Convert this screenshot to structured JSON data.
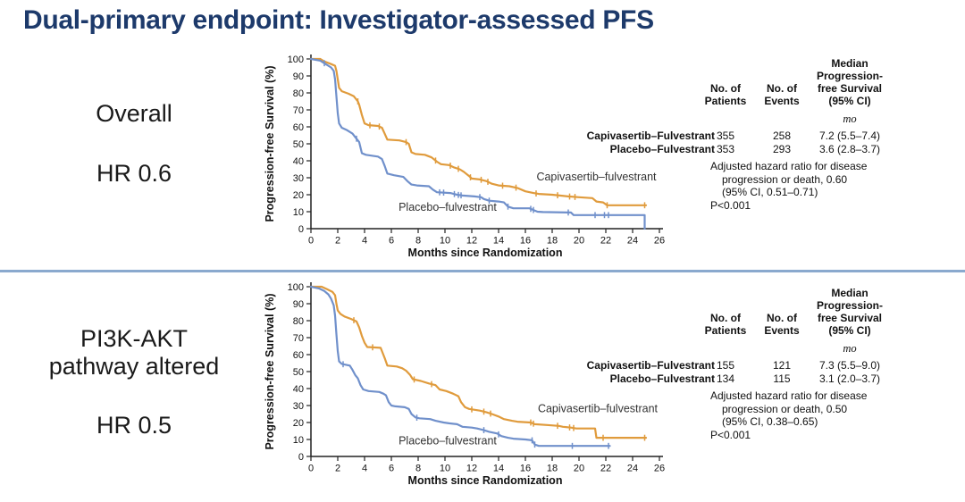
{
  "title": "Dual-primary endpoint: Investigator-assessed PFS",
  "colors": {
    "title": "#1d3a6b",
    "divider": "#8aa9ce",
    "capivasertib": "#e09b3c",
    "placebo": "#7090cb",
    "axis": "#222222"
  },
  "panels": [
    {
      "subgroup_label": "Overall",
      "hr_label": "HR 0.6",
      "table": {
        "header_patients": "No. of\nPatients",
        "header_events": "No. of\nEvents",
        "header_median": "Median\nProgression-\nfree Survival\n(95% CI)",
        "unit": "mo",
        "rows": [
          {
            "label": "Capivasertib–Fulvestrant",
            "patients": "355",
            "events": "258",
            "median": "7.2 (5.5–7.4)"
          },
          {
            "label": "Placebo–Fulvestrant",
            "patients": "353",
            "events": "293",
            "median": "3.6 (2.8–3.7)"
          }
        ],
        "hazard_lines": [
          "Adjusted hazard ratio for disease",
          "progression or death, 0.60",
          "(95% CI, 0.51–0.71)",
          "P<0.001"
        ]
      }
    },
    {
      "subgroup_label": "PI3K-AKT\npathway altered",
      "hr_label": "HR 0.5",
      "table": {
        "header_patients": "No. of\nPatients",
        "header_events": "No. of\nEvents",
        "header_median": "Median\nProgression-\nfree Survival\n(95% CI)",
        "unit": "mo",
        "rows": [
          {
            "label": "Capivasertib–Fulvestrant",
            "patients": "155",
            "events": "121",
            "median": "7.3 (5.5–9.0)"
          },
          {
            "label": "Placebo–Fulvestrant",
            "patients": "134",
            "events": "115",
            "median": "3.1 (2.0–3.7)"
          }
        ],
        "hazard_lines": [
          "Adjusted hazard ratio for disease",
          "progression or death, 0.50",
          "(95% CI, 0.38–0.65)",
          "P<0.001"
        ]
      }
    }
  ],
  "chart_data": [
    {
      "type": "line",
      "title": "Overall — Investigator-assessed PFS",
      "xlabel": "Months since Randomization",
      "ylabel": "Progression-free Survival (%)",
      "xlim": [
        0,
        26
      ],
      "ylim": [
        0,
        100
      ],
      "xticks": [
        0,
        2,
        4,
        6,
        8,
        10,
        12,
        14,
        16,
        18,
        20,
        22,
        24,
        26
      ],
      "yticks": [
        0,
        10,
        20,
        30,
        40,
        50,
        60,
        70,
        80,
        90,
        100
      ],
      "grid": false,
      "legend_position": "in-plot labels",
      "series": [
        {
          "key": "capivasertib",
          "name": "Capivasertib–fulvestrant",
          "color": "#e09b3c",
          "label_at": [
            21.3,
            28.5
          ],
          "points": [
            [
              0,
              100
            ],
            [
              0.7,
              100
            ],
            [
              1.0,
              98.5
            ],
            [
              1.5,
              97
            ],
            [
              1.8,
              96
            ],
            [
              1.9,
              93
            ],
            [
              2.0,
              88
            ],
            [
              2.1,
              83
            ],
            [
              2.3,
              81
            ],
            [
              2.8,
              79.5
            ],
            [
              3.2,
              78
            ],
            [
              3.5,
              75
            ],
            [
              3.6,
              73
            ],
            [
              3.8,
              67
            ],
            [
              4.0,
              62
            ],
            [
              4.3,
              61
            ],
            [
              5.0,
              60.5
            ],
            [
              5.3,
              59.5
            ],
            [
              5.5,
              56
            ],
            [
              5.7,
              52.5
            ],
            [
              6.6,
              52
            ],
            [
              7.1,
              51
            ],
            [
              7.3,
              50
            ],
            [
              7.5,
              45
            ],
            [
              7.8,
              44
            ],
            [
              8.5,
              43.5
            ],
            [
              9.0,
              42
            ],
            [
              9.4,
              39.5
            ],
            [
              9.7,
              38
            ],
            [
              10.3,
              37.5
            ],
            [
              10.7,
              36
            ],
            [
              11.1,
              35
            ],
            [
              11.4,
              33.5
            ],
            [
              11.8,
              31
            ],
            [
              12.0,
              29.5
            ],
            [
              12.6,
              29
            ],
            [
              13.1,
              28
            ],
            [
              13.5,
              26.5
            ],
            [
              14.0,
              25.5
            ],
            [
              14.8,
              25
            ],
            [
              15.4,
              24
            ],
            [
              16.0,
              22
            ],
            [
              16.6,
              21
            ],
            [
              17.0,
              20.5
            ],
            [
              18.0,
              20
            ],
            [
              19.2,
              19
            ],
            [
              20.0,
              18.5
            ],
            [
              21.0,
              18
            ],
            [
              21.3,
              16
            ],
            [
              21.8,
              15.5
            ],
            [
              22.1,
              13.8
            ],
            [
              25.0,
              13.8
            ]
          ],
          "censor_x": [
            3.5,
            4.4,
            5.1,
            7.1,
            9.3,
            10.4,
            11.0,
            11.9,
            12.7,
            13.2,
            14.3,
            15.3,
            16.8,
            18.4,
            19.3,
            19.7,
            22.1,
            24.9
          ]
        },
        {
          "key": "placebo",
          "name": "Placebo–fulvestrant",
          "color": "#7090cb",
          "label_at": [
            10.2,
            10.5
          ],
          "points": [
            [
              0,
              100
            ],
            [
              0.7,
              99
            ],
            [
              1.0,
              97.5
            ],
            [
              1.5,
              95
            ],
            [
              1.7,
              93
            ],
            [
              1.8,
              88
            ],
            [
              1.9,
              78
            ],
            [
              2.0,
              68
            ],
            [
              2.1,
              62
            ],
            [
              2.3,
              59.5
            ],
            [
              2.7,
              58
            ],
            [
              3.1,
              56
            ],
            [
              3.3,
              54
            ],
            [
              3.5,
              52
            ],
            [
              3.6,
              51
            ],
            [
              3.8,
              44.5
            ],
            [
              4.1,
              43.5
            ],
            [
              5.0,
              42.5
            ],
            [
              5.3,
              41
            ],
            [
              5.5,
              37
            ],
            [
              5.7,
              32.5
            ],
            [
              6.2,
              31.5
            ],
            [
              6.9,
              30.5
            ],
            [
              7.2,
              28
            ],
            [
              7.5,
              26
            ],
            [
              7.9,
              25.5
            ],
            [
              8.8,
              25
            ],
            [
              9.1,
              23
            ],
            [
              9.4,
              21.5
            ],
            [
              10.4,
              21
            ],
            [
              10.9,
              20
            ],
            [
              11.3,
              19.5
            ],
            [
              12.2,
              19
            ],
            [
              12.7,
              18.5
            ],
            [
              12.9,
              17.5
            ],
            [
              13.3,
              16.5
            ],
            [
              14.0,
              16
            ],
            [
              14.4,
              15.5
            ],
            [
              14.7,
              13
            ],
            [
              15.1,
              12
            ],
            [
              16.3,
              12
            ],
            [
              16.6,
              11
            ],
            [
              16.9,
              10
            ],
            [
              17.3,
              9.8
            ],
            [
              19.4,
              9.5
            ],
            [
              19.6,
              8
            ],
            [
              24.9,
              8
            ],
            [
              24.9,
              0
            ]
          ],
          "censor_x": [
            1.0,
            3.4,
            9.6,
            9.9,
            10.7,
            11.0,
            11.2,
            12.6,
            13.3,
            14.7,
            16.4,
            16.6,
            19.2,
            21.2,
            21.9,
            22.2
          ]
        }
      ]
    },
    {
      "type": "line",
      "title": "PI3K-AKT pathway altered — Investigator-assessed PFS",
      "xlabel": "Months since Randomization",
      "ylabel": "Progression-free Survival (%)",
      "xlim": [
        0,
        26
      ],
      "ylim": [
        0,
        100
      ],
      "xticks": [
        0,
        2,
        4,
        6,
        8,
        10,
        12,
        14,
        16,
        18,
        20,
        22,
        24,
        26
      ],
      "yticks": [
        0,
        10,
        20,
        30,
        40,
        50,
        60,
        70,
        80,
        90,
        100
      ],
      "grid": false,
      "legend_position": "in-plot labels",
      "series": [
        {
          "key": "capivasertib",
          "name": "Capivasertib–fulvestrant",
          "color": "#e09b3c",
          "label_at": [
            21.4,
            26
          ],
          "points": [
            [
              0,
              100
            ],
            [
              0.8,
              100
            ],
            [
              1.2,
              98.5
            ],
            [
              1.6,
              97
            ],
            [
              1.8,
              95
            ],
            [
              1.9,
              90
            ],
            [
              2.0,
              86
            ],
            [
              2.2,
              84
            ],
            [
              2.5,
              82.5
            ],
            [
              3.0,
              81
            ],
            [
              3.4,
              79.5
            ],
            [
              3.6,
              76
            ],
            [
              3.8,
              71
            ],
            [
              4.0,
              67
            ],
            [
              4.2,
              64.5
            ],
            [
              5.2,
              64
            ],
            [
              5.5,
              58
            ],
            [
              5.7,
              53.5
            ],
            [
              6.4,
              53
            ],
            [
              6.8,
              52
            ],
            [
              7.1,
              50.5
            ],
            [
              7.4,
              48
            ],
            [
              7.6,
              45.5
            ],
            [
              8.2,
              44.5
            ],
            [
              8.8,
              43
            ],
            [
              9.3,
              42
            ],
            [
              9.6,
              39.5
            ],
            [
              10.1,
              38.5
            ],
            [
              10.6,
              37
            ],
            [
              11.0,
              35.5
            ],
            [
              11.2,
              32
            ],
            [
              11.5,
              29
            ],
            [
              11.8,
              28
            ],
            [
              12.6,
              27
            ],
            [
              13.1,
              26
            ],
            [
              13.5,
              25
            ],
            [
              14.0,
              23.5
            ],
            [
              14.4,
              22
            ],
            [
              15.0,
              21
            ],
            [
              15.4,
              20.5
            ],
            [
              16.4,
              20
            ],
            [
              16.7,
              19
            ],
            [
              17.6,
              18.5
            ],
            [
              18.5,
              18
            ],
            [
              18.8,
              17.5
            ],
            [
              19.4,
              17
            ],
            [
              19.8,
              16.5
            ],
            [
              21.2,
              16.5
            ],
            [
              21.3,
              11
            ],
            [
              25.0,
              11
            ]
          ],
          "censor_x": [
            3.2,
            4.6,
            7.7,
            9.0,
            12.0,
            12.9,
            13.4,
            16.4,
            16.6,
            18.4,
            19.3,
            19.6,
            21.8,
            24.9
          ]
        },
        {
          "key": "placebo",
          "name": "Placebo–fulvestrant",
          "color": "#7090cb",
          "label_at": [
            10.2,
            7.2
          ],
          "points": [
            [
              0,
              100
            ],
            [
              0.6,
              99
            ],
            [
              1.0,
              97.5
            ],
            [
              1.3,
              95.5
            ],
            [
              1.5,
              93
            ],
            [
              1.7,
              89
            ],
            [
              1.8,
              83
            ],
            [
              1.9,
              72
            ],
            [
              2.0,
              62
            ],
            [
              2.1,
              56
            ],
            [
              2.3,
              54.5
            ],
            [
              2.9,
              53.5
            ],
            [
              3.1,
              51
            ],
            [
              3.3,
              48
            ],
            [
              3.5,
              46
            ],
            [
              3.7,
              42
            ],
            [
              3.9,
              39.5
            ],
            [
              4.3,
              38.5
            ],
            [
              5.1,
              38
            ],
            [
              5.4,
              37
            ],
            [
              5.6,
              36
            ],
            [
              5.8,
              32
            ],
            [
              6.0,
              30
            ],
            [
              6.3,
              29.5
            ],
            [
              7.0,
              29
            ],
            [
              7.3,
              28
            ],
            [
              7.5,
              25
            ],
            [
              7.8,
              23
            ],
            [
              8.1,
              22.5
            ],
            [
              8.9,
              22
            ],
            [
              9.3,
              21
            ],
            [
              9.9,
              20
            ],
            [
              10.3,
              19.5
            ],
            [
              10.9,
              19
            ],
            [
              11.3,
              17.5
            ],
            [
              12.0,
              17
            ],
            [
              12.4,
              16.5
            ],
            [
              12.9,
              15.5
            ],
            [
              13.3,
              14.5
            ],
            [
              13.9,
              13.5
            ],
            [
              14.2,
              12
            ],
            [
              14.7,
              11
            ],
            [
              15.1,
              10.5
            ],
            [
              16.0,
              10
            ],
            [
              16.5,
              9.5
            ],
            [
              16.7,
              7
            ],
            [
              17.0,
              6.2
            ],
            [
              22.3,
              6.2
            ]
          ],
          "censor_x": [
            2.4,
            7.9,
            12.9,
            14.0,
            16.5,
            16.7,
            19.5,
            22.2
          ]
        }
      ]
    }
  ]
}
